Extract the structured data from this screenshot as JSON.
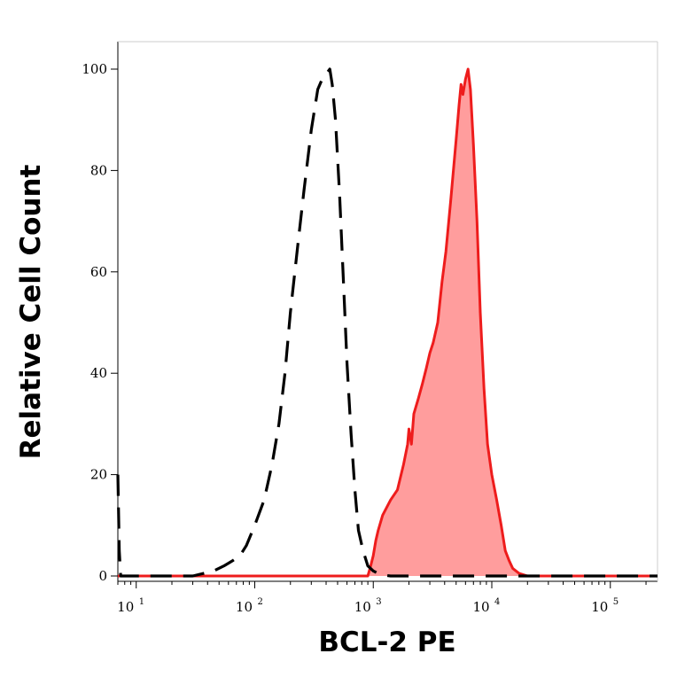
{
  "chart_data": {
    "type": "area",
    "xlabel": "BCL-2 PE",
    "ylabel": "Relative Cell Count",
    "x_scale": "log",
    "xlim": [
      7,
      250000
    ],
    "ylim": [
      0,
      105
    ],
    "grid": false,
    "y_ticks": [
      {
        "value": 0,
        "label": "0"
      },
      {
        "value": 20,
        "label": "20"
      },
      {
        "value": 40,
        "label": "40"
      },
      {
        "value": 60,
        "label": "60"
      },
      {
        "value": 80,
        "label": "80"
      },
      {
        "value": 100,
        "label": "100"
      }
    ],
    "x_ticks": [
      {
        "value": 10,
        "base": "10",
        "exp": "1"
      },
      {
        "value": 100,
        "base": "10",
        "exp": "2"
      },
      {
        "value": 1000,
        "base": "10",
        "exp": "3"
      },
      {
        "value": 10000,
        "base": "10",
        "exp": "4"
      },
      {
        "value": 100000,
        "base": "10",
        "exp": "5"
      }
    ],
    "series": [
      {
        "style": "dashed",
        "color": "#000000",
        "x": [
          7,
          7.2,
          7.4,
          10,
          20,
          30,
          45,
          55,
          65,
          75,
          85,
          100,
          120,
          140,
          160,
          180,
          200,
          230,
          260,
          300,
          340,
          370,
          400,
          430,
          450,
          480,
          520,
          560,
          600,
          650,
          700,
          750,
          820,
          900,
          1000,
          1100,
          1200,
          1400,
          2000,
          5000,
          20000,
          100000,
          250000
        ],
        "y": [
          20,
          5,
          0,
          0,
          0,
          0,
          1,
          2,
          3,
          4,
          6,
          10,
          15,
          22,
          30,
          40,
          52,
          65,
          76,
          88,
          96,
          98,
          99,
          100,
          97,
          90,
          75,
          58,
          42,
          28,
          17,
          9,
          5,
          2,
          1,
          0.5,
          0.2,
          0,
          0,
          0,
          0,
          0,
          0
        ]
      },
      {
        "style": "filled",
        "color": "#ee1c1c",
        "fill": "#ff9d9d",
        "x": [
          7,
          900,
          950,
          1000,
          1050,
          1100,
          1200,
          1400,
          1600,
          1800,
          1950,
          2000,
          2100,
          2200,
          2400,
          2600,
          2800,
          3000,
          3200,
          3500,
          3800,
          4100,
          4500,
          5000,
          5300,
          5500,
          5700,
          6000,
          6300,
          6600,
          7000,
          7500,
          8000,
          8600,
          9200,
          10000,
          11000,
          12000,
          13000,
          14000,
          15000,
          17000,
          20000,
          250000
        ],
        "y": [
          0,
          0,
          2,
          4,
          7,
          9,
          12,
          15,
          17,
          22,
          26,
          29,
          26,
          32,
          35,
          38,
          41,
          44,
          46,
          50,
          58,
          64,
          74,
          86,
          93,
          97,
          95,
          98,
          100,
          96,
          85,
          70,
          52,
          37,
          26,
          20,
          15,
          10,
          5,
          3,
          1.5,
          0.5,
          0,
          0
        ]
      }
    ]
  }
}
